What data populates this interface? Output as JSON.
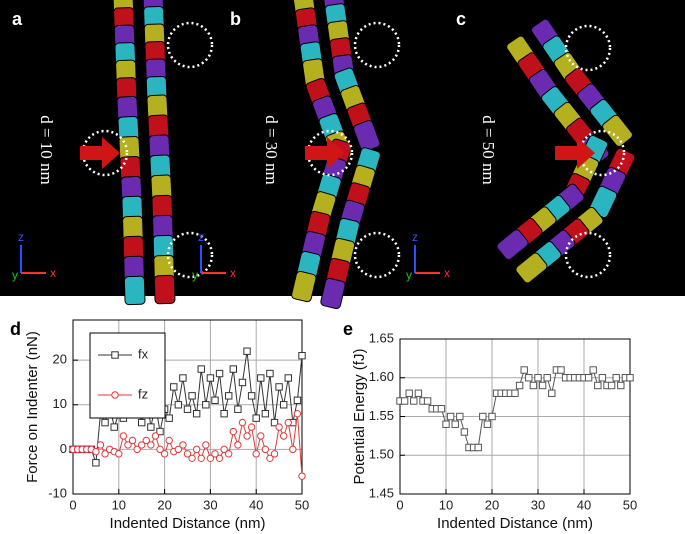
{
  "figure_panels": [
    {
      "label": "a",
      "caption": "d = 10 nm"
    },
    {
      "label": "b",
      "caption": "d = 30 nm"
    },
    {
      "label": "c",
      "caption": "d = 50 nm"
    }
  ],
  "axis_triad": {
    "z": "z",
    "y": "y",
    "x": "x"
  },
  "chart_data": [
    {
      "type": "line",
      "panel_label": "d",
      "x_label": "Indented Distance (nm)",
      "y_label": "Force on Indenter (nN)",
      "x": [
        0,
        1,
        2,
        3,
        4,
        5,
        6,
        7,
        8,
        9,
        10,
        11,
        12,
        13,
        14,
        15,
        16,
        17,
        18,
        19,
        20,
        21,
        22,
        23,
        24,
        25,
        26,
        27,
        28,
        29,
        30,
        31,
        32,
        33,
        34,
        35,
        36,
        37,
        38,
        39,
        40,
        41,
        42,
        43,
        44,
        45,
        46,
        47,
        48,
        49,
        50
      ],
      "xlim": [
        0,
        50
      ],
      "xticks": [
        0,
        10,
        20,
        30,
        40,
        50
      ],
      "ylim": [
        -10,
        29
      ],
      "yticks": [
        -10,
        0,
        10,
        20
      ],
      "grid": true,
      "legend": "upper left",
      "series": [
        {
          "name": "fx",
          "color": "#333333",
          "marker": "square",
          "values": [
            0,
            0,
            0,
            0,
            0,
            -3,
            8,
            6,
            10,
            5,
            8,
            7,
            12,
            9,
            11,
            6,
            13,
            5,
            10,
            4,
            9,
            7,
            14,
            10,
            16,
            9,
            12,
            8,
            18,
            10,
            16,
            11,
            17,
            8,
            12,
            18,
            9,
            15,
            22,
            12,
            7,
            16,
            8,
            17,
            6,
            14,
            10,
            16,
            6,
            11,
            21
          ]
        },
        {
          "name": "fz",
          "color": "#e03a3a",
          "marker": "circle",
          "values": [
            0,
            0,
            0,
            0,
            0,
            -0.5,
            1,
            -1,
            0,
            -0.5,
            -1,
            3,
            1,
            2,
            0,
            1,
            2,
            1,
            3,
            0,
            -1,
            2,
            -0.5,
            0,
            1,
            -1,
            -2,
            0,
            -2,
            1,
            -2,
            -1,
            -2,
            0,
            -1,
            4,
            1,
            6,
            3,
            5,
            -1,
            3,
            0,
            -2,
            -1,
            5,
            3,
            6,
            0,
            8,
            -6
          ]
        }
      ]
    },
    {
      "type": "line",
      "panel_label": "e",
      "x_label": "Indented Distance (nm)",
      "y_label": "Potential Energy (fJ)",
      "x": [
        0,
        1,
        2,
        3,
        4,
        5,
        6,
        7,
        8,
        9,
        10,
        11,
        12,
        13,
        14,
        15,
        16,
        17,
        18,
        19,
        20,
        21,
        22,
        23,
        24,
        25,
        26,
        27,
        28,
        29,
        30,
        31,
        32,
        33,
        34,
        35,
        36,
        37,
        38,
        39,
        40,
        41,
        42,
        43,
        44,
        45,
        46,
        47,
        48,
        49,
        50
      ],
      "xlim": [
        0,
        50
      ],
      "xticks": [
        0,
        10,
        20,
        30,
        40,
        50
      ],
      "ylim": [
        1.45,
        1.65
      ],
      "yticks": [
        1.45,
        {
          "value": 1.5,
          "label": "1.50"
        },
        1.55,
        {
          "value": 1.6,
          "label": "1.60"
        },
        1.65
      ],
      "grid": true,
      "series": [
        {
          "color": "#555555",
          "marker": "square",
          "values": [
            1.57,
            1.57,
            1.58,
            1.57,
            1.58,
            1.57,
            1.57,
            1.56,
            1.56,
            1.56,
            1.54,
            1.55,
            1.54,
            1.55,
            1.53,
            1.51,
            1.51,
            1.51,
            1.55,
            1.54,
            1.55,
            1.58,
            1.58,
            1.58,
            1.58,
            1.58,
            1.59,
            1.61,
            1.6,
            1.59,
            1.6,
            1.59,
            1.6,
            1.58,
            1.61,
            1.61,
            1.6,
            1.6,
            1.6,
            1.6,
            1.6,
            1.6,
            1.61,
            1.59,
            1.6,
            1.59,
            1.59,
            1.6,
            1.59,
            1.6,
            1.6
          ]
        }
      ]
    }
  ]
}
